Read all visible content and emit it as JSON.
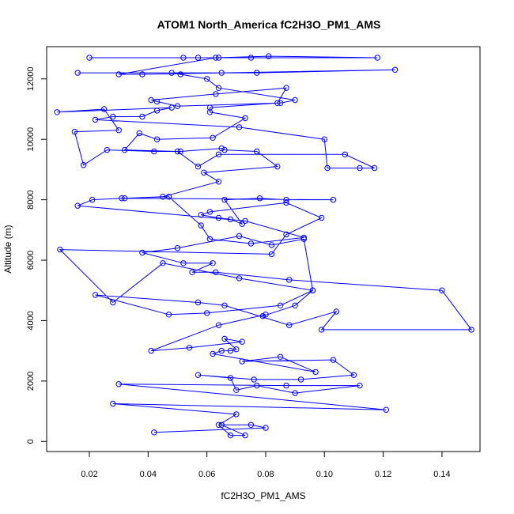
{
  "chart_data": {
    "type": "scatter",
    "title": "ATOM1 North_America fC2H3O_PM1_AMS",
    "xlabel": "fC2H3O_PM1_AMS",
    "ylabel": "Altitude (m)",
    "xlim": [
      0.00546,
      0.15294
    ],
    "ylim": [
      -333,
      13067
    ],
    "x_ticks": [
      0.02,
      0.04,
      0.06,
      0.08,
      0.1,
      0.12,
      0.14
    ],
    "x_tick_labels": [
      "0.02",
      "0.04",
      "0.06",
      "0.08",
      "0.10",
      "0.12",
      "0.14"
    ],
    "y_ticks": [
      0,
      2000,
      4000,
      6000,
      8000,
      10000,
      12000
    ],
    "y_tick_labels": [
      "0",
      "2000",
      "4000",
      "6000",
      "8000",
      "10000",
      "12000"
    ],
    "grid": false,
    "legend": "none",
    "series": [
      {
        "color": "#0000ff",
        "marker": "open-circle",
        "connected": true,
        "points": [
          [
            0.042,
            300
          ],
          [
            0.08,
            450
          ],
          [
            0.075,
            550
          ],
          [
            0.065,
            550
          ],
          [
            0.073,
            200
          ],
          [
            0.068,
            200
          ],
          [
            0.064,
            550
          ],
          [
            0.07,
            900
          ],
          [
            0.028,
            1250
          ],
          [
            0.121,
            1050
          ],
          [
            0.03,
            1900
          ],
          [
            0.087,
            1850
          ],
          [
            0.112,
            1850
          ],
          [
            0.09,
            1600
          ],
          [
            0.077,
            1850
          ],
          [
            0.07,
            1700
          ],
          [
            0.068,
            2100
          ],
          [
            0.057,
            2200
          ],
          [
            0.076,
            2050
          ],
          [
            0.092,
            2050
          ],
          [
            0.11,
            2200
          ],
          [
            0.103,
            2700
          ],
          [
            0.072,
            2650
          ],
          [
            0.085,
            2800
          ],
          [
            0.097,
            2300
          ],
          [
            0.062,
            2900
          ],
          [
            0.065,
            3000
          ],
          [
            0.068,
            3000
          ],
          [
            0.07,
            3050
          ],
          [
            0.066,
            3400
          ],
          [
            0.072,
            3300
          ],
          [
            0.054,
            3100
          ],
          [
            0.041,
            3000
          ],
          [
            0.064,
            3850
          ],
          [
            0.08,
            4200
          ],
          [
            0.079,
            4150
          ],
          [
            0.09,
            4500
          ],
          [
            0.096,
            5000
          ],
          [
            0.085,
            4500
          ],
          [
            0.06,
            4250
          ],
          [
            0.047,
            4200
          ],
          [
            0.022,
            4850
          ],
          [
            0.057,
            4600
          ],
          [
            0.066,
            4500
          ],
          [
            0.088,
            3850
          ],
          [
            0.104,
            4300
          ],
          [
            0.099,
            3700
          ],
          [
            0.15,
            3700
          ],
          [
            0.14,
            5000
          ],
          [
            0.088,
            5350
          ],
          [
            0.063,
            5600
          ],
          [
            0.055,
            5600
          ],
          [
            0.062,
            5900
          ],
          [
            0.052,
            5900
          ],
          [
            0.038,
            6250
          ],
          [
            0.05,
            6400
          ],
          [
            0.071,
            6800
          ],
          [
            0.082,
            6500
          ],
          [
            0.093,
            6700
          ],
          [
            0.096,
            5000
          ],
          [
            0.071,
            5400
          ],
          [
            0.045,
            5900
          ],
          [
            0.028,
            4600
          ],
          [
            0.01,
            6350
          ],
          [
            0.082,
            6200
          ],
          [
            0.087,
            6850
          ],
          [
            0.099,
            7400
          ],
          [
            0.087,
            7900
          ],
          [
            0.061,
            7600
          ],
          [
            0.058,
            7500
          ],
          [
            0.064,
            7400
          ],
          [
            0.068,
            7350
          ],
          [
            0.072,
            7200
          ],
          [
            0.066,
            8000
          ],
          [
            0.078,
            8050
          ],
          [
            0.087,
            8000
          ],
          [
            0.103,
            8000
          ],
          [
            0.031,
            8050
          ],
          [
            0.021,
            8000
          ],
          [
            0.016,
            7800
          ],
          [
            0.073,
            7300
          ],
          [
            0.093,
            6750
          ],
          [
            0.075,
            6550
          ],
          [
            0.061,
            6700
          ],
          [
            0.058,
            7150
          ],
          [
            0.047,
            8100
          ],
          [
            0.032,
            8050
          ],
          [
            0.045,
            8100
          ],
          [
            0.064,
            8600
          ],
          [
            0.059,
            8900
          ],
          [
            0.084,
            9100
          ],
          [
            0.077,
            9600
          ],
          [
            0.066,
            9650
          ],
          [
            0.065,
            9700
          ],
          [
            0.051,
            9600
          ],
          [
            0.042,
            9600
          ],
          [
            0.026,
            9650
          ],
          [
            0.018,
            9150
          ],
          [
            0.015,
            10250
          ],
          [
            0.03,
            10300
          ],
          [
            0.025,
            11000
          ],
          [
            0.009,
            10900
          ],
          [
            0.048,
            11050
          ],
          [
            0.043,
            10950
          ],
          [
            0.038,
            10750
          ],
          [
            0.028,
            10750
          ],
          [
            0.022,
            10650
          ],
          [
            0.071,
            10400
          ],
          [
            0.1,
            10000
          ],
          [
            0.101,
            9050
          ],
          [
            0.112,
            9050
          ],
          [
            0.117,
            9050
          ],
          [
            0.107,
            9500
          ],
          [
            0.064,
            9500
          ],
          [
            0.057,
            9100
          ],
          [
            0.05,
            9600
          ],
          [
            0.032,
            9650
          ],
          [
            0.037,
            10200
          ],
          [
            0.043,
            10000
          ],
          [
            0.062,
            10050
          ],
          [
            0.073,
            10700
          ],
          [
            0.061,
            10900
          ],
          [
            0.061,
            11050
          ],
          [
            0.084,
            11200
          ],
          [
            0.087,
            11700
          ],
          [
            0.063,
            11500
          ],
          [
            0.041,
            11300
          ],
          [
            0.043,
            11250
          ],
          [
            0.05,
            11100
          ],
          [
            0.085,
            11200
          ],
          [
            0.09,
            11300
          ],
          [
            0.064,
            11700
          ],
          [
            0.06,
            12000
          ],
          [
            0.051,
            12150
          ],
          [
            0.048,
            12200
          ],
          [
            0.016,
            12200
          ],
          [
            0.065,
            12200
          ],
          [
            0.077,
            12200
          ],
          [
            0.124,
            12300
          ],
          [
            0.038,
            12150
          ],
          [
            0.03,
            12150
          ],
          [
            0.063,
            12700
          ],
          [
            0.081,
            12750
          ],
          [
            0.118,
            12700
          ],
          [
            0.057,
            12700
          ],
          [
            0.064,
            12700
          ],
          [
            0.052,
            12700
          ],
          [
            0.02,
            12700
          ],
          [
            0.075,
            12700
          ]
        ]
      }
    ]
  }
}
